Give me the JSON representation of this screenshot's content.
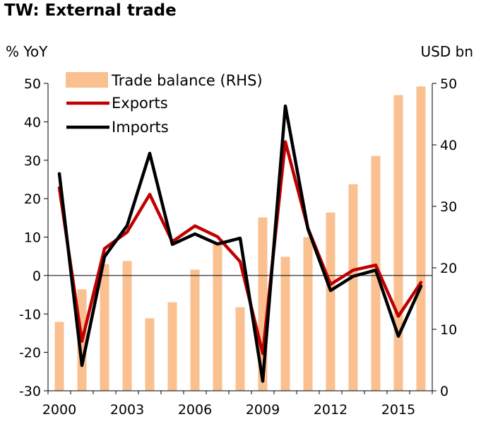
{
  "chart_data": {
    "type": "bar+line",
    "title": "TW: External trade",
    "ylabel_left": "% YoY",
    "ylabel_right": "USD bn",
    "x": [
      2000,
      2001,
      2002,
      2003,
      2004,
      2005,
      2006,
      2007,
      2008,
      2009,
      2010,
      2011,
      2012,
      2013,
      2014,
      2015,
      2016
    ],
    "x_tick_labels": [
      "2000",
      "2003",
      "2006",
      "2009",
      "2012",
      "2015"
    ],
    "ylim_left": [
      -30,
      50
    ],
    "yticks_left": [
      50,
      40,
      30,
      20,
      10,
      0,
      -10,
      -20,
      -30
    ],
    "ylim_right": [
      0,
      50
    ],
    "yticks_right": [
      50,
      40,
      30,
      20,
      10,
      0
    ],
    "series": [
      {
        "name": "Trade balance (RHS)",
        "type": "bar",
        "axis": "right",
        "color": "#fac090",
        "values": [
          11.2,
          16.5,
          20.6,
          21.1,
          11.8,
          14.4,
          19.7,
          24.2,
          13.6,
          28.2,
          21.8,
          25.0,
          29.0,
          33.6,
          38.2,
          48.1,
          49.5
        ]
      },
      {
        "name": "Exports",
        "type": "line",
        "axis": "left",
        "color": "#c00000",
        "values": [
          22.8,
          -17.1,
          7.0,
          11.3,
          21.1,
          8.8,
          12.9,
          10.1,
          3.6,
          -20.3,
          34.8,
          12.3,
          -2.3,
          1.4,
          2.7,
          -10.6,
          -1.8
        ]
      },
      {
        "name": "Imports",
        "type": "line",
        "axis": "left",
        "color": "#000000",
        "values": [
          26.5,
          -23.4,
          4.9,
          13.0,
          31.8,
          8.1,
          10.8,
          8.2,
          9.7,
          -27.5,
          44.1,
          12.1,
          -3.9,
          -0.2,
          1.4,
          -15.8,
          -2.8
        ]
      }
    ],
    "legend_position": "top-left"
  }
}
